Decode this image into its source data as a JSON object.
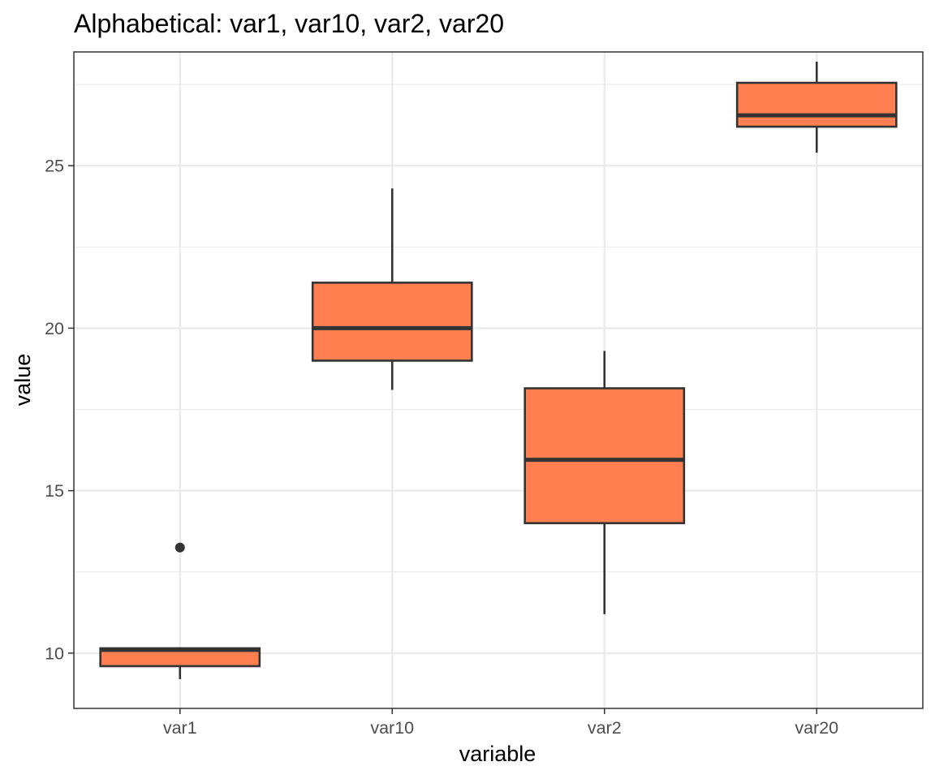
{
  "chart_data": {
    "type": "box",
    "title": "Alphabetical: var1, var10, var2, var20",
    "xlabel": "variable",
    "ylabel": "value",
    "categories": [
      "var1",
      "var10",
      "var2",
      "var20"
    ],
    "ylim": [
      8.3,
      28.5
    ],
    "y_ticks": [
      10,
      15,
      20,
      25
    ],
    "y_tick_labels": [
      "10",
      "15",
      "20",
      "25"
    ],
    "grid": true,
    "box_fill": "#FF7F50",
    "box_stroke": "#333333",
    "boxes": [
      {
        "category": "var1",
        "lower_whisker": 9.2,
        "q1": 9.6,
        "median": 10.1,
        "q3": 10.15,
        "upper_whisker": 10.15,
        "outliers": [
          13.25
        ]
      },
      {
        "category": "var10",
        "lower_whisker": 18.1,
        "q1": 19.0,
        "median": 20.0,
        "q3": 21.4,
        "upper_whisker": 24.3,
        "outliers": []
      },
      {
        "category": "var2",
        "lower_whisker": 11.2,
        "q1": 14.0,
        "median": 15.95,
        "q3": 18.15,
        "upper_whisker": 19.3,
        "outliers": []
      },
      {
        "category": "var20",
        "lower_whisker": 25.4,
        "q1": 26.2,
        "median": 26.55,
        "q3": 27.55,
        "upper_whisker": 28.2,
        "outliers": []
      }
    ]
  }
}
